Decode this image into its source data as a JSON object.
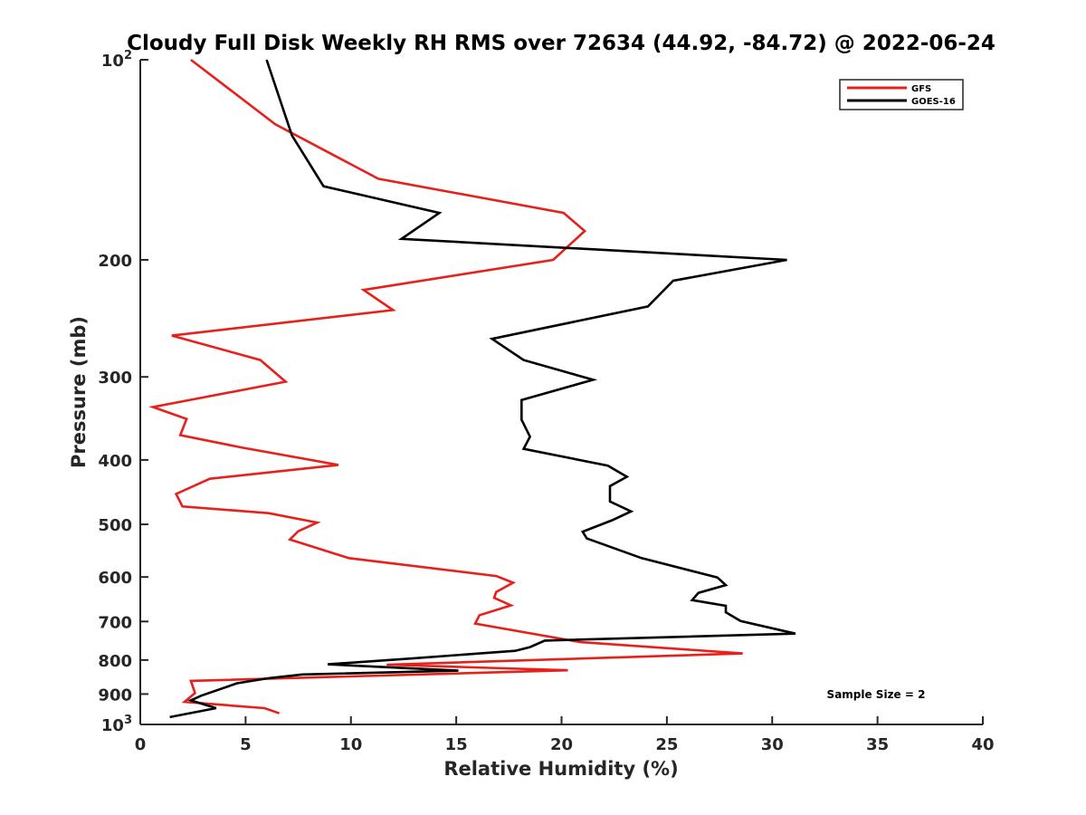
{
  "chart_data": {
    "type": "line",
    "title": "Cloudy Full Disk Weekly RH RMS over 72634 (44.92, -84.72) @ 2022-06-24",
    "xlabel": "Relative Humidity (%)",
    "ylabel": "Pressure (mb)",
    "xlim": [
      0,
      40
    ],
    "ylim": [
      100,
      1000
    ],
    "y_scale": "log",
    "y_reversed": true,
    "x_ticks": [
      0,
      5,
      10,
      15,
      20,
      25,
      30,
      35,
      40
    ],
    "x_tick_labels": [
      "0",
      "5",
      "10",
      "15",
      "20",
      "25",
      "30",
      "35",
      "40"
    ],
    "y_ticks": [
      100,
      200,
      300,
      400,
      500,
      600,
      700,
      800,
      900,
      1000
    ],
    "y_tick_labels": [
      {
        "base": "10",
        "exp": "2"
      },
      {
        "base": "200",
        "exp": ""
      },
      {
        "base": "300",
        "exp": ""
      },
      {
        "base": "400",
        "exp": ""
      },
      {
        "base": "500",
        "exp": ""
      },
      {
        "base": "600",
        "exp": ""
      },
      {
        "base": "700",
        "exp": ""
      },
      {
        "base": "800",
        "exp": ""
      },
      {
        "base": "900",
        "exp": ""
      },
      {
        "base": "10",
        "exp": "3"
      }
    ],
    "grid": false,
    "legend_position": "top-right",
    "annotation": "Sample Size = 2",
    "series": [
      {
        "name": "GFS",
        "color": "#e8201c",
        "points": [
          [
            2.4,
            100
          ],
          [
            6.4,
            125
          ],
          [
            11.3,
            151
          ],
          [
            20.1,
            170
          ],
          [
            21.1,
            181
          ],
          [
            19.6,
            200
          ],
          [
            10.6,
            222
          ],
          [
            12.0,
            238
          ],
          [
            1.5,
            260
          ],
          [
            5.7,
            283
          ],
          [
            6.9,
            305
          ],
          [
            0.6,
            333
          ],
          [
            2.2,
            347
          ],
          [
            1.9,
            367
          ],
          [
            4.8,
            383
          ],
          [
            9.4,
            407
          ],
          [
            3.3,
            427
          ],
          [
            1.7,
            450
          ],
          [
            2.0,
            470
          ],
          [
            6.1,
            481
          ],
          [
            8.4,
            497
          ],
          [
            7.5,
            512
          ],
          [
            7.1,
            527
          ],
          [
            9.9,
            562
          ],
          [
            16.9,
            598
          ],
          [
            17.7,
            612
          ],
          [
            16.9,
            632
          ],
          [
            16.8,
            645
          ],
          [
            17.6,
            662
          ],
          [
            16.1,
            685
          ],
          [
            15.9,
            705
          ],
          [
            20.9,
            752
          ],
          [
            28.6,
            782
          ],
          [
            11.7,
            813
          ],
          [
            20.3,
            829
          ],
          [
            2.4,
            860
          ],
          [
            2.6,
            897
          ],
          [
            2.1,
            925
          ],
          [
            5.9,
            945
          ],
          [
            6.6,
            962
          ]
        ]
      },
      {
        "name": "GOES-16",
        "color": "#000000",
        "points": [
          [
            6.0,
            100
          ],
          [
            7.2,
            130
          ],
          [
            8.7,
            155
          ],
          [
            14.2,
            170
          ],
          [
            12.4,
            186
          ],
          [
            30.7,
            200
          ],
          [
            25.3,
            215
          ],
          [
            24.1,
            235
          ],
          [
            16.7,
            263
          ],
          [
            18.2,
            283
          ],
          [
            21.5,
            303
          ],
          [
            18.1,
            325
          ],
          [
            18.1,
            348
          ],
          [
            18.5,
            369
          ],
          [
            18.2,
            385
          ],
          [
            22.2,
            408
          ],
          [
            23.1,
            424
          ],
          [
            22.3,
            438
          ],
          [
            22.3,
            462
          ],
          [
            23.3,
            478
          ],
          [
            22.4,
            493
          ],
          [
            21.0,
            513
          ],
          [
            21.2,
            525
          ],
          [
            23.8,
            562
          ],
          [
            27.4,
            601
          ],
          [
            27.8,
            617
          ],
          [
            26.5,
            634
          ],
          [
            26.2,
            650
          ],
          [
            27.8,
            663
          ],
          [
            27.8,
            678
          ],
          [
            28.5,
            699
          ],
          [
            31.1,
            730
          ],
          [
            19.2,
            748
          ],
          [
            18.5,
            765
          ],
          [
            17.8,
            775
          ],
          [
            13.0,
            795
          ],
          [
            8.9,
            812
          ],
          [
            15.1,
            830
          ],
          [
            7.7,
            841
          ],
          [
            6.1,
            852
          ],
          [
            4.6,
            867
          ],
          [
            2.9,
            905
          ],
          [
            2.4,
            920
          ],
          [
            3.6,
            945
          ],
          [
            1.4,
            975
          ]
        ]
      }
    ]
  }
}
